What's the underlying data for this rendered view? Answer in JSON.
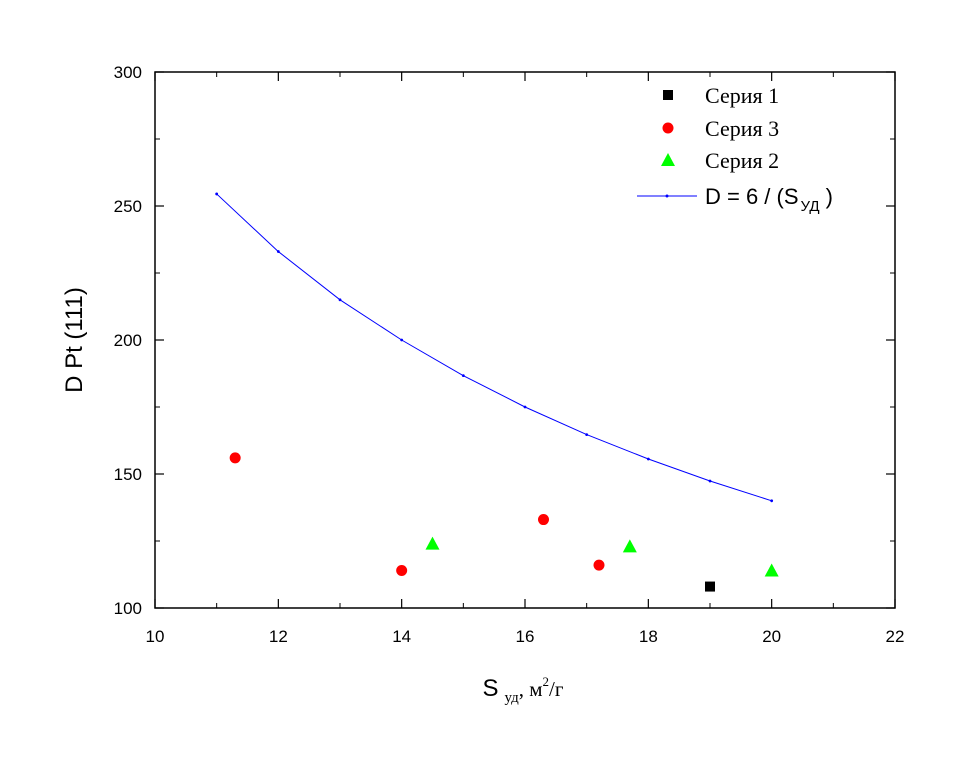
{
  "chart_data": {
    "type": "scatter",
    "xlim": [
      10,
      22
    ],
    "ylim": [
      100,
      300
    ],
    "x_ticks": [
      10,
      12,
      14,
      16,
      18,
      20,
      22
    ],
    "y_ticks": [
      100,
      150,
      200,
      250,
      300
    ],
    "xlabel": {
      "main": "S",
      "sub": "уд",
      "unit_prefix": ", м",
      "unit_sup": "2",
      "unit_suffix": "/г"
    },
    "ylabel": "D Pt (111)",
    "grid": false,
    "legend_position": "top-right",
    "series": [
      {
        "name": "Серия 1",
        "marker": "square",
        "color": "#000000",
        "points": [
          [
            19.0,
            108
          ]
        ]
      },
      {
        "name": "Серия 3",
        "marker": "circle",
        "color": "#ff0000",
        "points": [
          [
            11.3,
            156
          ],
          [
            14.0,
            114
          ],
          [
            16.3,
            133
          ],
          [
            17.2,
            116
          ]
        ]
      },
      {
        "name": "Серия 2",
        "marker": "triangle",
        "color": "#00ff00",
        "points": [
          [
            14.5,
            124
          ],
          [
            17.7,
            123
          ],
          [
            20.0,
            114
          ]
        ]
      },
      {
        "name": "D = 6 / (S",
        "name_sub": "УД",
        "name_suffix": " )",
        "marker": "line",
        "color": "#0000ff",
        "points": [
          [
            11,
            254.5
          ],
          [
            12,
            233
          ],
          [
            13,
            215
          ],
          [
            14,
            200
          ],
          [
            15,
            186.7
          ],
          [
            16,
            175
          ],
          [
            17,
            164.7
          ],
          [
            18,
            155.6
          ],
          [
            19,
            147.4
          ],
          [
            20,
            140
          ]
        ]
      }
    ]
  }
}
